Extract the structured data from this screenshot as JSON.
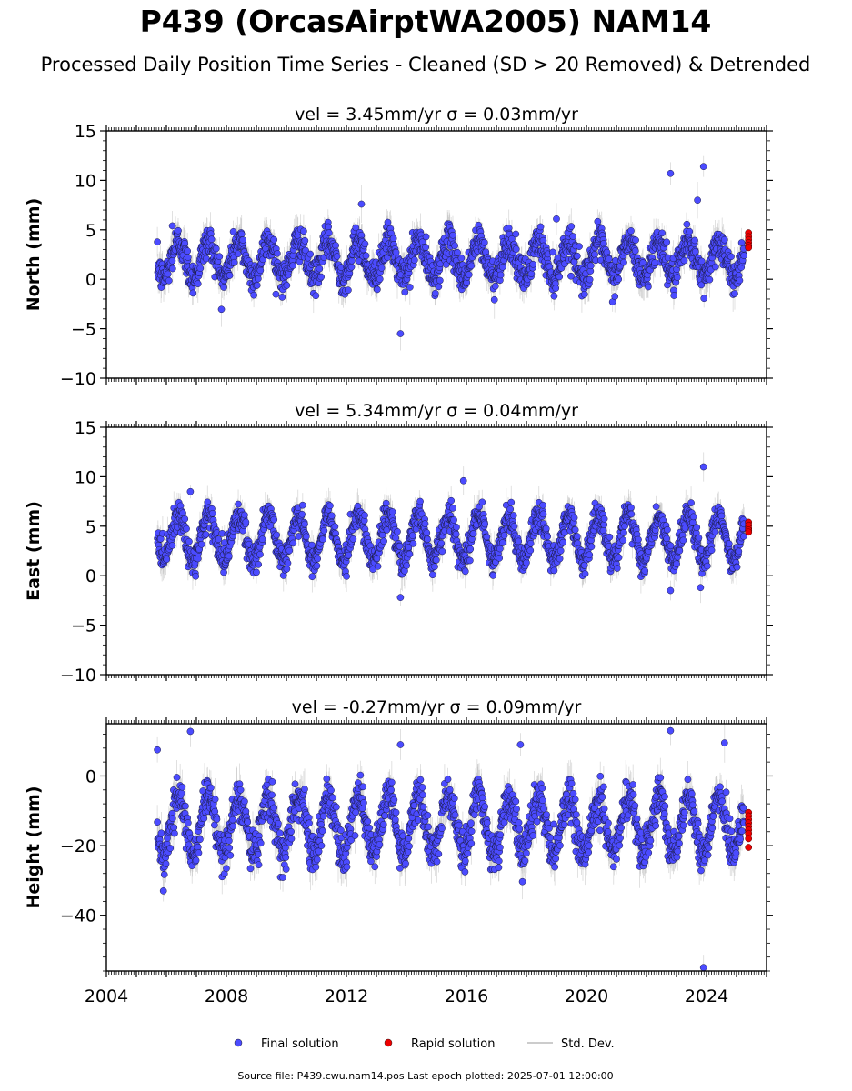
{
  "title": "P439 (OrcasAirptWA2005) NAM14",
  "subtitle": "Processed Daily Position Time Series - Cleaned (SD > 20 Removed) & Detrended",
  "footer": "Source file: P439.cwu.nam14.pos  Last epoch plotted: 2025-07-01 12:00:00",
  "colors": {
    "final": "#4b4bff",
    "rapid": "#ee0000",
    "stddev": "#bbbbbb",
    "axis": "#000000"
  },
  "legend": [
    {
      "label": "Final solution",
      "marker": "circle",
      "color": "#4b4bff"
    },
    {
      "label": "Rapid solution",
      "marker": "circle",
      "color": "#ee0000"
    },
    {
      "label": "Std. Dev.",
      "marker": "line",
      "color": "#bbbbbb"
    }
  ],
  "chart_data": [
    {
      "type": "scatter",
      "title": "vel = 3.45mm/yr   σ = 0.03mm/yr",
      "ylabel": "North (mm)",
      "xlim": [
        2004,
        2026
      ],
      "ylim": [
        -10,
        15
      ],
      "yticks": [
        -10,
        -5,
        0,
        5,
        10,
        15
      ],
      "ytick_labels": [
        "−10",
        "−5",
        "0",
        "5",
        "10",
        "15"
      ],
      "xticks": [
        2004,
        2008,
        2012,
        2016,
        2020,
        2024
      ],
      "xtick_labels": [],
      "show_xtick_labels": false,
      "series": [
        {
          "name": "Final solution",
          "x_start": 2005.7,
          "x_end": 2025.25,
          "baseline": 2.0,
          "annual_amplitude": 1.8,
          "noise": 1.2,
          "sigma": 1.4,
          "outliers": [
            [
              2013.8,
              -5.5
            ],
            [
              2022.8,
              10.7
            ],
            [
              2023.9,
              11.4
            ],
            [
              2023.7,
              8.0
            ],
            [
              2012.5,
              7.6
            ],
            [
              2006.2,
              5.4
            ],
            [
              2019.0,
              6.1
            ]
          ]
        },
        {
          "name": "Rapid solution",
          "x": [
            2025.4,
            2025.4,
            2025.4,
            2025.4,
            2025.4,
            2025.4
          ],
          "y": [
            4.7,
            4.3,
            4.0,
            3.7,
            3.4,
            3.2
          ]
        }
      ]
    },
    {
      "type": "scatter",
      "title": "vel = 5.34mm/yr   σ = 0.04mm/yr",
      "ylabel": "East (mm)",
      "xlim": [
        2004,
        2026
      ],
      "ylim": [
        -10,
        15
      ],
      "yticks": [
        -10,
        -5,
        0,
        5,
        10,
        15
      ],
      "ytick_labels": [
        "−10",
        "−5",
        "0",
        "5",
        "10",
        "15"
      ],
      "xticks": [
        2004,
        2008,
        2012,
        2016,
        2020,
        2024
      ],
      "xtick_labels": [],
      "show_xtick_labels": false,
      "series": [
        {
          "name": "Final solution",
          "x_start": 2005.7,
          "x_end": 2025.25,
          "baseline": 3.8,
          "annual_amplitude": 2.3,
          "noise": 1.0,
          "sigma": 1.3,
          "outliers": [
            [
              2023.9,
              11.0
            ],
            [
              2022.8,
              -1.5
            ],
            [
              2023.8,
              -1.2
            ],
            [
              2015.9,
              9.6
            ],
            [
              2006.8,
              8.5
            ],
            [
              2013.8,
              -2.2
            ]
          ]
        },
        {
          "name": "Rapid solution",
          "x": [
            2025.4,
            2025.4,
            2025.4,
            2025.4,
            2025.4
          ],
          "y": [
            5.4,
            5.1,
            4.8,
            4.6,
            4.4
          ]
        }
      ]
    },
    {
      "type": "scatter",
      "title": "vel = -0.27mm/yr   σ = 0.09mm/yr",
      "ylabel": "Height (mm)",
      "xlim": [
        2004,
        2026
      ],
      "ylim": [
        -56,
        15
      ],
      "yticks": [
        -40,
        -20,
        0
      ],
      "ytick_labels": [
        "−40",
        "−20",
        "0"
      ],
      "xticks": [
        2004,
        2008,
        2012,
        2016,
        2020,
        2024
      ],
      "xtick_labels": [
        "2004",
        "2008",
        "2012",
        "2016",
        "2020",
        "2024"
      ],
      "show_xtick_labels": true,
      "series": [
        {
          "name": "Final solution",
          "x_start": 2005.7,
          "x_end": 2025.25,
          "baseline": -14.0,
          "annual_amplitude": 8.0,
          "noise": 4.0,
          "sigma": 4.5,
          "outliers": [
            [
              2023.9,
              -55.0
            ],
            [
              2022.8,
              13.0
            ],
            [
              2006.8,
              12.8
            ],
            [
              2017.8,
              9.0
            ],
            [
              2013.8,
              9.0
            ],
            [
              2024.6,
              9.5
            ],
            [
              2005.7,
              7.5
            ],
            [
              2005.9,
              -33.0
            ]
          ]
        },
        {
          "name": "Rapid solution",
          "x": [
            2025.4,
            2025.4,
            2025.4,
            2025.4,
            2025.4,
            2025.4,
            2025.4,
            2025.4,
            2025.4
          ],
          "y": [
            -10.5,
            -11.5,
            -12.5,
            -13.5,
            -14.5,
            -15.5,
            -16.5,
            -18.0,
            -20.5
          ]
        }
      ]
    }
  ]
}
